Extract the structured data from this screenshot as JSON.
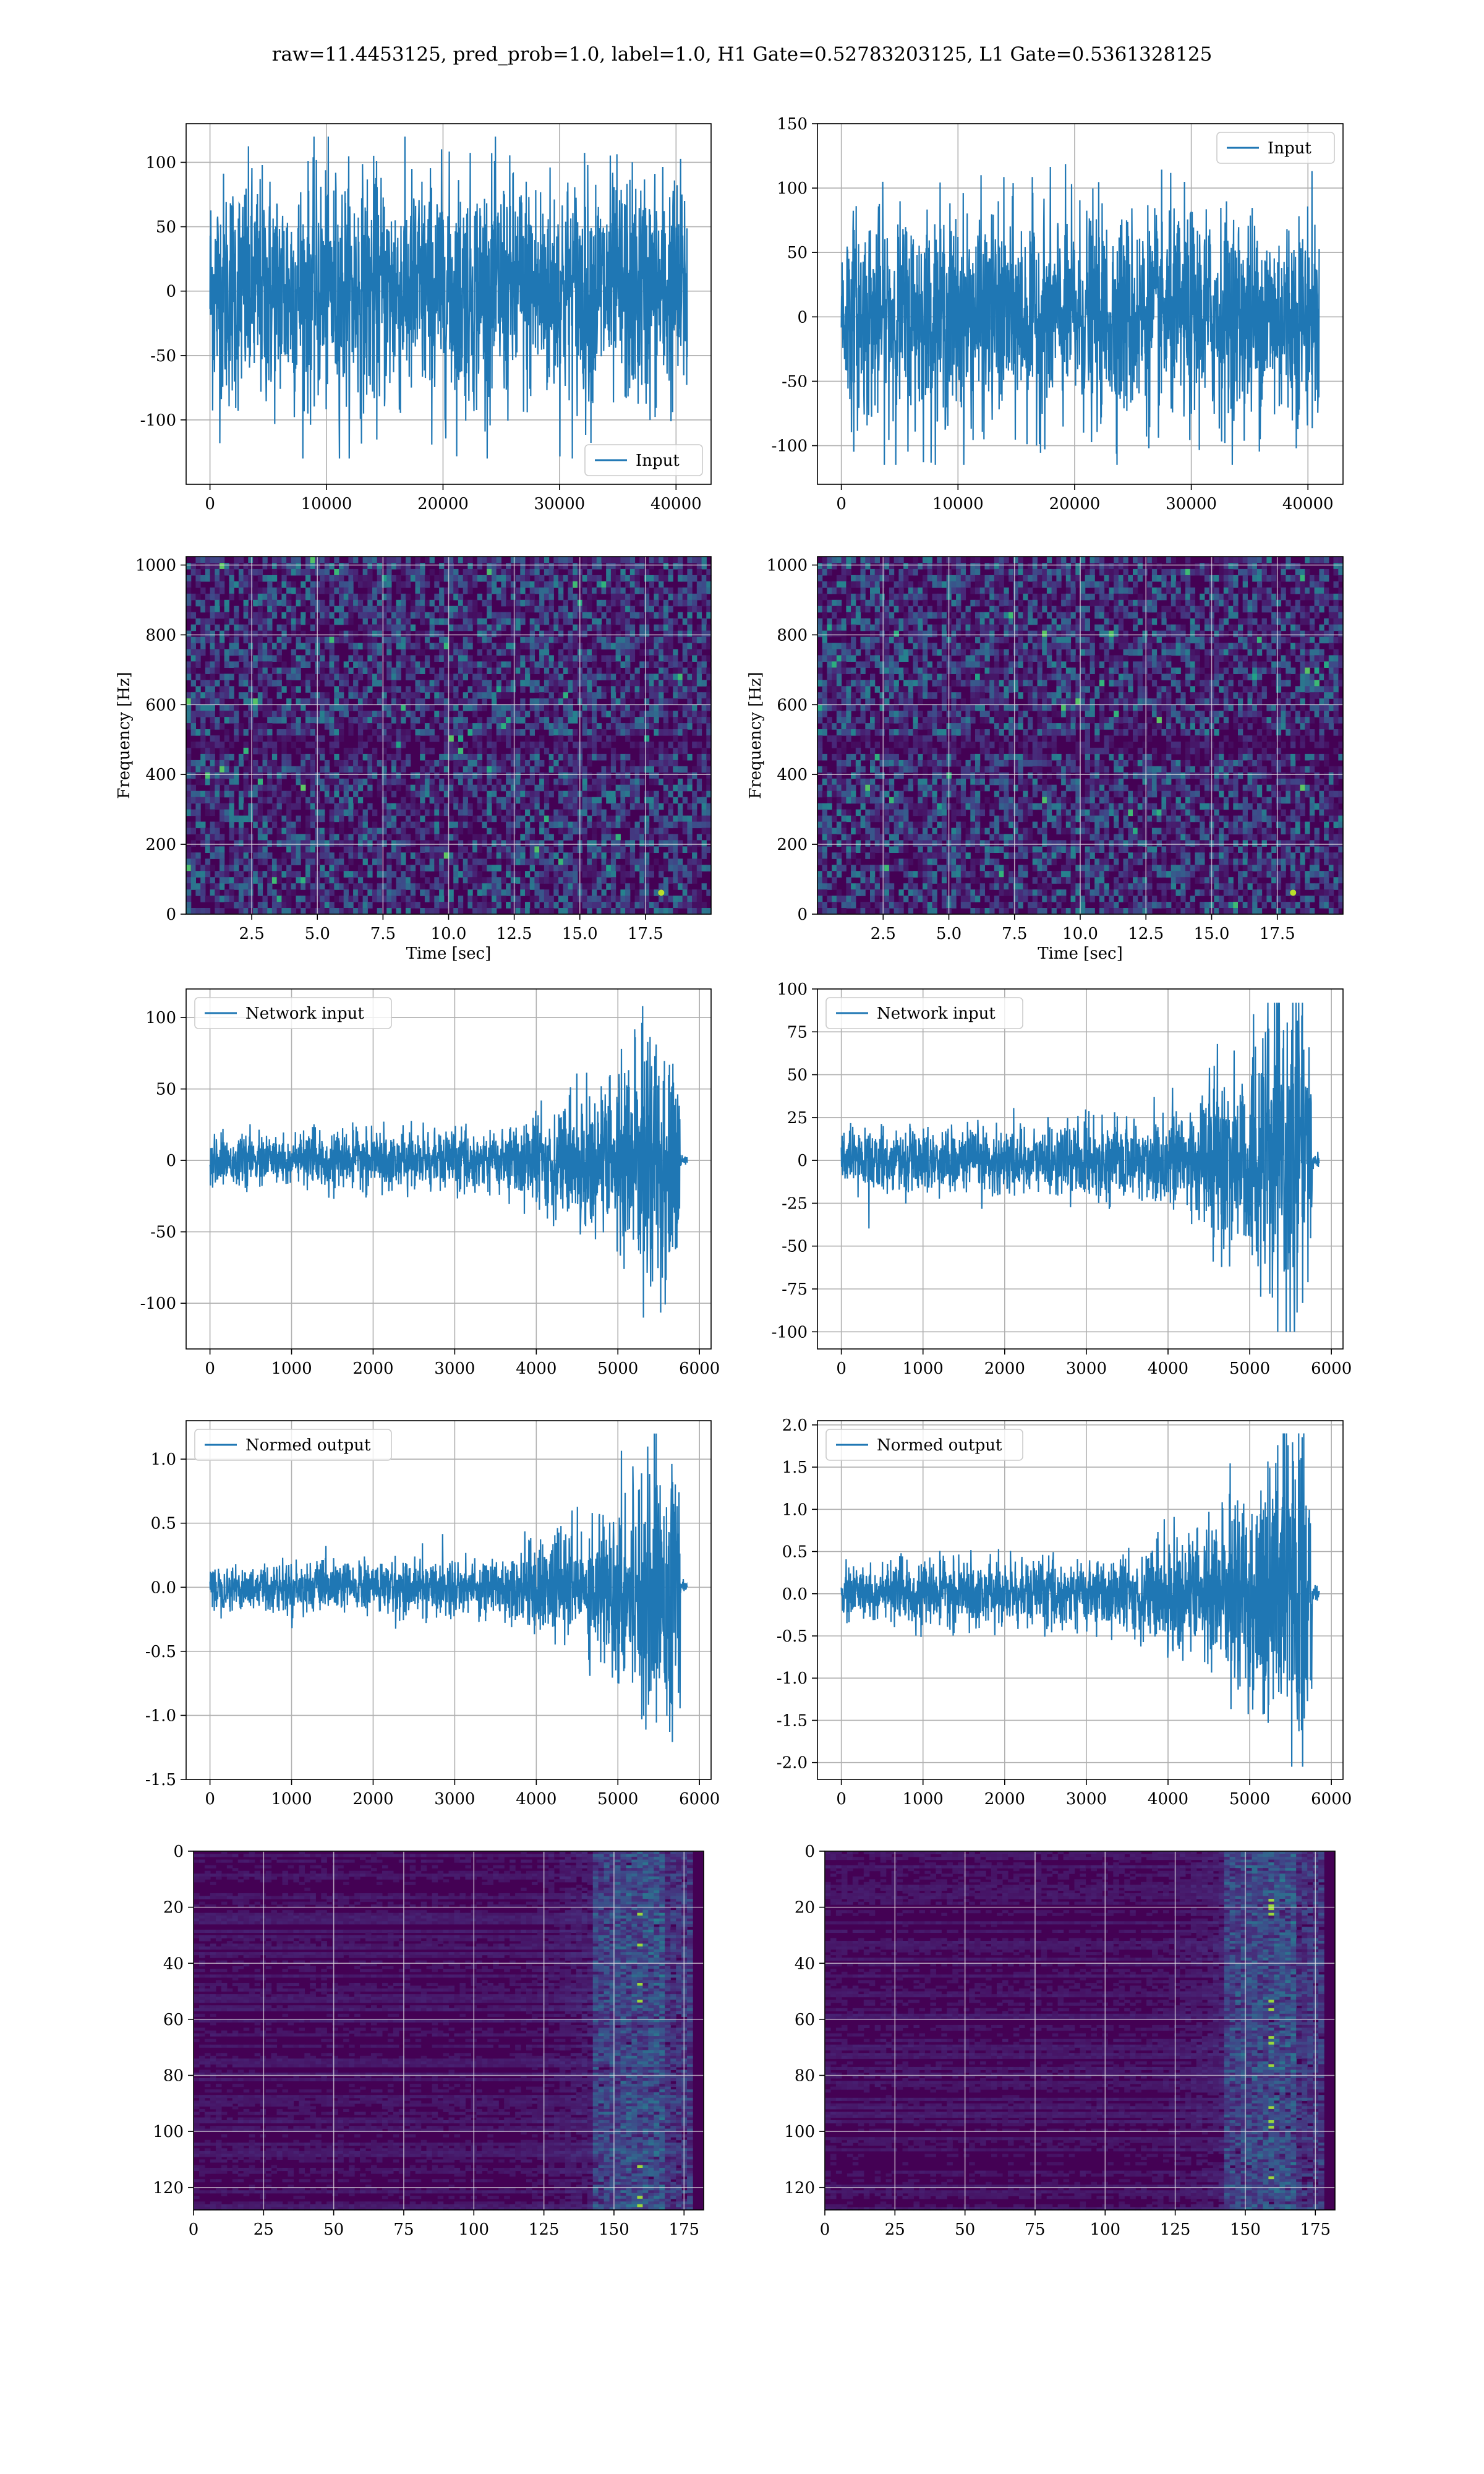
{
  "figure": {
    "title": "raw=11.4453125, pred_prob=1.0, label=1.0, H1 Gate=0.52783203125, L1 Gate=0.5361328125"
  },
  "colors": {
    "line": "#1f77b4",
    "grid": "#b0b0b0",
    "viridis_dark": "#440154",
    "viridis_mid": "#21918c",
    "viridis_bright": "#fde725"
  },
  "chart_data": [
    {
      "id": "input_h1",
      "type": "line",
      "series": [
        {
          "name": "Input",
          "signal": "noise",
          "amplitude": 45,
          "peak": 120,
          "trough": -130
        }
      ],
      "x_range": [
        0,
        40960
      ],
      "ylim": [
        -150,
        130
      ],
      "xticks": [
        0,
        10000,
        20000,
        30000,
        40000
      ],
      "yticks": [
        -100,
        -50,
        0,
        50,
        100
      ],
      "legend": "lower right",
      "grid": true
    },
    {
      "id": "input_l1",
      "type": "line",
      "series": [
        {
          "name": "Input",
          "signal": "noise",
          "amplitude": 40,
          "peak": 140,
          "trough": -115
        }
      ],
      "x_range": [
        0,
        40960
      ],
      "ylim": [
        -130,
        150
      ],
      "xticks": [
        0,
        10000,
        20000,
        30000,
        40000
      ],
      "yticks": [
        -100,
        -50,
        0,
        50,
        100,
        150
      ],
      "legend": "upper right",
      "grid": true
    },
    {
      "id": "spectrogram_h1",
      "type": "heatmap",
      "xlabel": "Time [sec]",
      "ylabel": "Frequency [Hz]",
      "xlim": [
        0,
        20
      ],
      "ylim": [
        0,
        1024
      ],
      "xticks": [
        "2.5",
        "5.0",
        "7.5",
        "10.0",
        "12.5",
        "15.0",
        "17.5"
      ],
      "yticks": [
        0,
        200,
        400,
        600,
        800,
        1000
      ],
      "colormap": "viridis",
      "grid": true
    },
    {
      "id": "spectrogram_l1",
      "type": "heatmap",
      "xlabel": "Time [sec]",
      "ylabel": "Frequency [Hz]",
      "xlim": [
        0,
        20
      ],
      "ylim": [
        0,
        1024
      ],
      "xticks": [
        "2.5",
        "5.0",
        "7.5",
        "10.0",
        "12.5",
        "15.0",
        "17.5"
      ],
      "yticks": [
        0,
        200,
        400,
        600,
        800,
        1000
      ],
      "colormap": "viridis",
      "grid": true
    },
    {
      "id": "network_input_h1",
      "type": "line",
      "series": [
        {
          "name": "Network input",
          "signal": "chirp",
          "amplitude": 8,
          "peak": 108,
          "trough": -122
        }
      ],
      "x_range": [
        0,
        5850
      ],
      "ylim": [
        -132,
        120
      ],
      "xticks": [
        0,
        1000,
        2000,
        3000,
        4000,
        5000,
        6000
      ],
      "yticks": [
        -100,
        -50,
        0,
        50,
        100
      ],
      "legend": "upper left",
      "grid": true
    },
    {
      "id": "network_input_l1",
      "type": "line",
      "series": [
        {
          "name": "Network input",
          "signal": "chirp",
          "amplitude": 8,
          "peak": 92,
          "trough": -100
        }
      ],
      "x_range": [
        0,
        5850
      ],
      "ylim": [
        -110,
        100
      ],
      "xticks": [
        0,
        1000,
        2000,
        3000,
        4000,
        5000,
        6000
      ],
      "yticks": [
        -100,
        -75,
        -50,
        -25,
        0,
        25,
        50,
        75,
        100
      ],
      "legend": "upper left",
      "grid": true
    },
    {
      "id": "normed_output_h1",
      "type": "line",
      "series": [
        {
          "name": "Normed output",
          "signal": "chirp",
          "amplitude": 0.085,
          "peak": 1.2,
          "trough": -1.37
        }
      ],
      "x_range": [
        0,
        5850
      ],
      "ylim": [
        -1.5,
        1.3
      ],
      "xticks": [
        0,
        1000,
        2000,
        3000,
        4000,
        5000,
        6000
      ],
      "yticks": [
        "-1.5",
        "-1.0",
        "-0.5",
        "0.0",
        "0.5",
        "1.0"
      ],
      "legend": "upper left",
      "grid": true
    },
    {
      "id": "normed_output_l1",
      "type": "line",
      "series": [
        {
          "name": "Normed output",
          "signal": "chirp",
          "amplitude": 0.16,
          "peak": 1.9,
          "trough": -2.05
        }
      ],
      "x_range": [
        0,
        5850
      ],
      "ylim": [
        -2.2,
        2.05
      ],
      "xticks": [
        0,
        1000,
        2000,
        3000,
        4000,
        5000,
        6000
      ],
      "yticks": [
        "-2.0",
        "-1.5",
        "-1.0",
        "-0.5",
        "0.0",
        "0.5",
        "1.0",
        "1.5",
        "2.0"
      ],
      "legend": "upper left",
      "grid": true
    },
    {
      "id": "feature_map_h1",
      "type": "heatmap",
      "xlim": [
        0,
        182
      ],
      "ylim": [
        128,
        0
      ],
      "inverted_y": true,
      "xticks": [
        0,
        25,
        50,
        75,
        100,
        125,
        150,
        175
      ],
      "yticks": [
        0,
        20,
        40,
        60,
        80,
        100,
        120
      ],
      "colormap": "viridis",
      "grid": true
    },
    {
      "id": "feature_map_l1",
      "type": "heatmap",
      "xlim": [
        0,
        182
      ],
      "ylim": [
        128,
        0
      ],
      "inverted_y": true,
      "xticks": [
        0,
        25,
        50,
        75,
        100,
        125,
        150,
        175
      ],
      "yticks": [
        0,
        20,
        40,
        60,
        80,
        100,
        120
      ],
      "colormap": "viridis",
      "grid": true
    }
  ]
}
